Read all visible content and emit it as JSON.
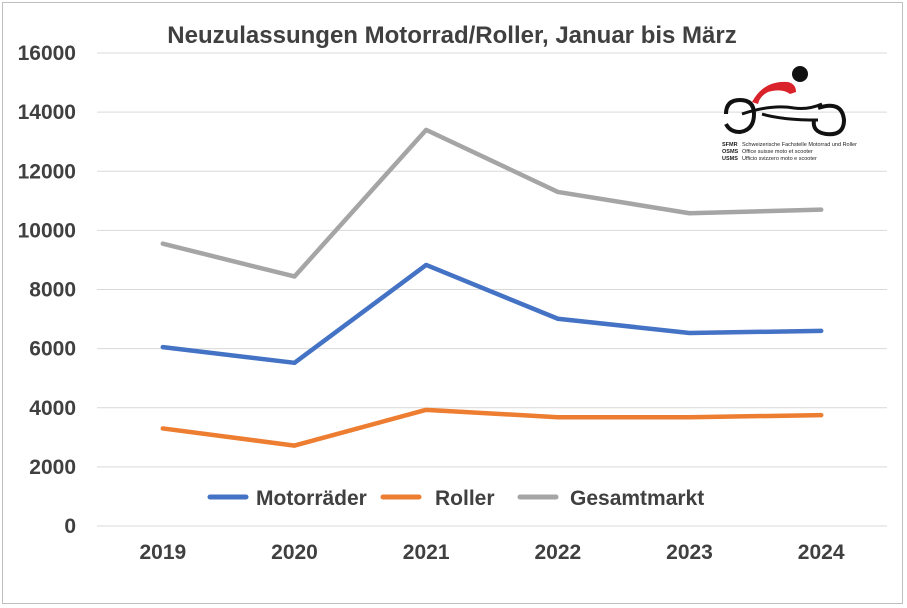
{
  "chart_data": {
    "type": "line",
    "title": "Neuzulassungen Motorrad/Roller, Januar bis März",
    "xlabel": "",
    "ylabel": "",
    "categories": [
      "2019",
      "2020",
      "2021",
      "2022",
      "2023",
      "2024"
    ],
    "ylim": [
      0,
      16000
    ],
    "yticks": [
      0,
      2000,
      4000,
      6000,
      8000,
      10000,
      12000,
      14000,
      16000
    ],
    "grid": true,
    "legend_position": "bottom",
    "series": [
      {
        "name": "Motorräder",
        "color": "#4472c4",
        "values": [
          6050,
          5520,
          8830,
          7010,
          6530,
          6600
        ]
      },
      {
        "name": "Roller",
        "color": "#ed7d31",
        "values": [
          3300,
          2720,
          3930,
          3680,
          3680,
          3750
        ]
      },
      {
        "name": "Gesamtmarkt",
        "color": "#a5a5a5",
        "values": [
          9550,
          8440,
          13400,
          11300,
          10580,
          10700
        ]
      }
    ]
  },
  "logo": {
    "name": "motorcycle-logo",
    "lines": [
      {
        "abbr": "SFMR",
        "text": "Schweizerische Fachstelle Motorrad und Roller"
      },
      {
        "abbr": "OSMS",
        "text": "Office suisse moto et scooter"
      },
      {
        "abbr": "USMS",
        "text": "Ufficio svizzero moto e scooter"
      }
    ]
  }
}
